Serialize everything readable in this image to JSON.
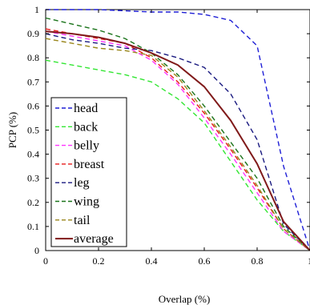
{
  "chart_data": {
    "type": "line",
    "title": "",
    "xlabel": "Overlap (%)",
    "ylabel": "PCP (%)",
    "xlim": [
      0,
      1
    ],
    "ylim": [
      0,
      1
    ],
    "xticks": [
      "0",
      "0.2",
      "0.4",
      "0.6",
      "0.8",
      "1"
    ],
    "yticks": [
      "0",
      "0.1",
      "0.2",
      "0.3",
      "0.4",
      "0.5",
      "0.6",
      "0.7",
      "0.8",
      "0.9",
      "1"
    ],
    "grid": false,
    "legend_position": "bottom-left",
    "x": [
      0,
      0.1,
      0.2,
      0.3,
      0.4,
      0.5,
      0.6,
      0.7,
      0.8,
      0.9,
      1.0
    ],
    "series": [
      {
        "name": "head",
        "color": "#1f1fd6",
        "dash": "dashed",
        "values": [
          1.0,
          1.0,
          1.0,
          0.995,
          0.99,
          0.99,
          0.98,
          0.955,
          0.85,
          0.35,
          0.0
        ]
      },
      {
        "name": "back",
        "color": "#33e633",
        "dash": "dashed",
        "values": [
          0.79,
          0.77,
          0.75,
          0.73,
          0.7,
          0.63,
          0.53,
          0.37,
          0.21,
          0.08,
          0.0
        ]
      },
      {
        "name": "belly",
        "color": "#ff33ff",
        "dash": "dashed",
        "values": [
          0.91,
          0.89,
          0.87,
          0.85,
          0.79,
          0.69,
          0.55,
          0.4,
          0.24,
          0.08,
          0.0
        ]
      },
      {
        "name": "breast",
        "color": "#e61a1a",
        "dash": "dashed",
        "values": [
          0.92,
          0.9,
          0.88,
          0.86,
          0.8,
          0.7,
          0.57,
          0.42,
          0.26,
          0.09,
          0.0
        ]
      },
      {
        "name": "leg",
        "color": "#1a1a80",
        "dash": "dashed",
        "values": [
          0.9,
          0.875,
          0.86,
          0.84,
          0.83,
          0.8,
          0.76,
          0.65,
          0.46,
          0.11,
          0.0
        ]
      },
      {
        "name": "wing",
        "color": "#1a731a",
        "dash": "dashed",
        "values": [
          0.965,
          0.94,
          0.915,
          0.88,
          0.82,
          0.73,
          0.6,
          0.45,
          0.3,
          0.1,
          0.0
        ]
      },
      {
        "name": "tail",
        "color": "#99861a",
        "dash": "dashed",
        "values": [
          0.88,
          0.86,
          0.84,
          0.83,
          0.81,
          0.72,
          0.58,
          0.43,
          0.27,
          0.09,
          0.0
        ]
      },
      {
        "name": "average",
        "color": "#801a1a",
        "dash": "solid",
        "values": [
          0.91,
          0.9,
          0.885,
          0.86,
          0.82,
          0.77,
          0.68,
          0.54,
          0.36,
          0.12,
          0.0
        ]
      }
    ]
  }
}
